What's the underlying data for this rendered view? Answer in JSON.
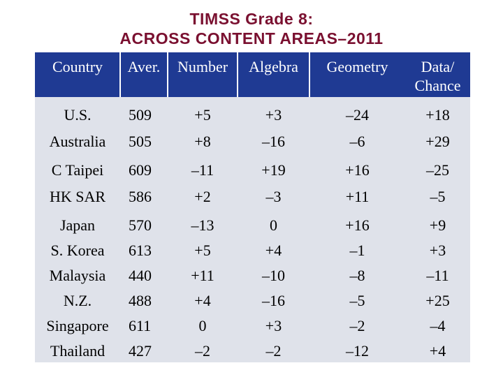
{
  "title": {
    "line1": "TIMSS Grade 8:",
    "line2": "ACROSS CONTENT AREAS–2011"
  },
  "colors": {
    "title": "#7a1030",
    "header_bg": "#1f3a93",
    "header_text": "#ffffff",
    "body_bg": "#dfe2ea"
  },
  "table": {
    "headers": [
      "Country",
      "Aver.",
      "Number",
      "Algebra",
      "Geometry",
      "Data/\nChance"
    ],
    "rows": [
      [
        "U.S.",
        "509",
        "+5",
        "+3",
        "–24",
        "+18"
      ],
      [
        "Australia",
        "505",
        "+8",
        "–16",
        "–6",
        "+29"
      ],
      [
        "C Taipei",
        "609",
        "–11",
        "+19",
        "+16",
        "–25"
      ],
      [
        "HK SAR",
        "586",
        "+2",
        "–3",
        "+11",
        "–5"
      ],
      [
        "Japan",
        "570",
        "–13",
        "0",
        "+16",
        "+9"
      ],
      [
        "S. Korea",
        "613",
        "+5",
        "+4",
        "–1",
        "+3"
      ],
      [
        "Malaysia",
        "440",
        "+11",
        "–10",
        "–8",
        "–11"
      ],
      [
        "N.Z.",
        "488",
        "+4",
        "–16",
        "–5",
        "+25"
      ],
      [
        "Singapore",
        "611",
        "0",
        "+3",
        "–2",
        "–4"
      ],
      [
        "Thailand",
        "427",
        "–2",
        "–2",
        "–12",
        "+4"
      ]
    ]
  }
}
